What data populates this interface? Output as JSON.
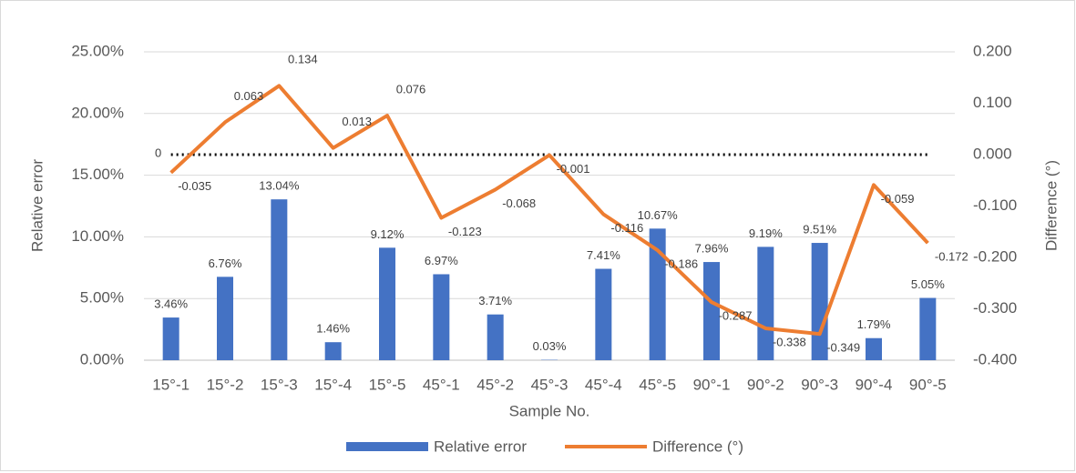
{
  "chart_data": {
    "type": "bar-line",
    "x_label": "Sample No.",
    "y_label": "Relative error",
    "y2_label": "Difference (°)",
    "categories": [
      "15°-1",
      "15°-2",
      "15°-3",
      "15°-4",
      "15°-5",
      "45°-1",
      "45°-2",
      "45°-3",
      "45°-4",
      "45°-5",
      "90°-1",
      "90°-2",
      "90°-3",
      "90°-4",
      "90°-5"
    ],
    "series": [
      {
        "name": "Relative error",
        "type": "bar",
        "color": "#4472c4",
        "values": [
          3.46,
          6.76,
          13.04,
          1.46,
          9.12,
          6.97,
          3.71,
          0.03,
          7.41,
          10.67,
          7.96,
          9.19,
          9.51,
          1.79,
          5.05
        ],
        "value_labels": [
          "3.46%",
          "6.76%",
          "13.04%",
          "1.46%",
          "9.12%",
          "6.97%",
          "3.71%",
          "0.03%",
          "7.41%",
          "10.67%",
          "7.96%",
          "9.19%",
          "9.51%",
          "1.79%",
          "5.05%"
        ]
      },
      {
        "name": "Difference (°)",
        "type": "line",
        "axis": "y2",
        "color": "#ed7d31",
        "values": [
          -0.035,
          0.063,
          0.134,
          0.013,
          0.076,
          -0.123,
          -0.068,
          -0.001,
          -0.116,
          -0.186,
          -0.287,
          -0.338,
          -0.349,
          -0.059,
          -0.172
        ]
      }
    ],
    "zero_line": 0,
    "ylim": [
      0,
      25
    ],
    "yticks": [
      {
        "value": 0,
        "label": "0.00%"
      },
      {
        "value": 5,
        "label": "5.00%"
      },
      {
        "value": 10,
        "label": "10.00%"
      },
      {
        "value": 15,
        "label": "15.00%"
      },
      {
        "value": 20,
        "label": "20.00%"
      },
      {
        "value": 25,
        "label": "25.00%"
      }
    ],
    "y2lim": [
      -0.4,
      0.2
    ],
    "y2ticks": [
      {
        "value": -0.4,
        "label": "-0.400"
      },
      {
        "value": -0.3,
        "label": "-0.300"
      },
      {
        "value": -0.2,
        "label": "-0.200"
      },
      {
        "value": -0.1,
        "label": "-0.100"
      },
      {
        "value": 0,
        "label": "0.000"
      },
      {
        "value": 0.1,
        "label": "0.100"
      },
      {
        "value": 0.2,
        "label": "0.200"
      }
    ],
    "grid": true,
    "legend": "bottom"
  }
}
